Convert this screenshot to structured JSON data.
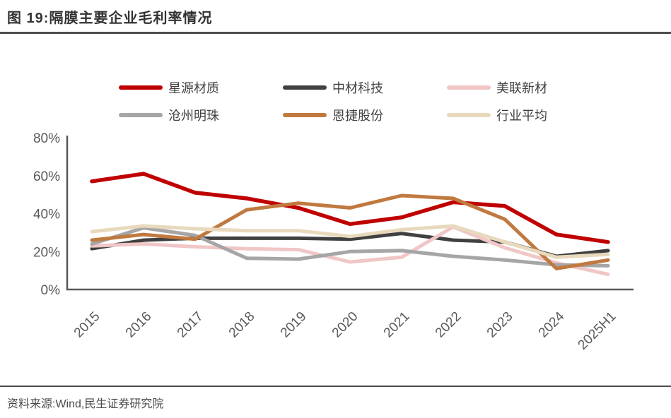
{
  "figure": {
    "title": "图 19:隔膜主要企业毛利率情况",
    "source": "资料来源:Wind,民生证券研究院"
  },
  "chart_data": {
    "type": "line",
    "title": "隔膜主要企业毛利率情况",
    "x": [
      "2015",
      "2016",
      "2017",
      "2018",
      "2019",
      "2020",
      "2021",
      "2022",
      "2023",
      "2024",
      "2025H1"
    ],
    "unit": "%",
    "ylim": [
      0,
      80
    ],
    "yticks": [
      0,
      20,
      40,
      60,
      80
    ],
    "ytick_labels": [
      "0%",
      "20%",
      "40%",
      "60%",
      "80%"
    ],
    "grid": false,
    "legend_position": "top",
    "axis_color": "#595959",
    "tick_label_color": "#595959",
    "series": [
      {
        "name": "星源材质",
        "color": "#C00000",
        "width": 5.5,
        "values": [
          57,
          61,
          51,
          48,
          43,
          34.5,
          38,
          46,
          44,
          29,
          25
        ]
      },
      {
        "name": "中材科技",
        "color": "#404040",
        "width": 5,
        "values": [
          21.5,
          26,
          27,
          27,
          27,
          26.5,
          29.5,
          26,
          25,
          17.5,
          20.5
        ]
      },
      {
        "name": "美联新材",
        "color": "#F0C6C6",
        "width": 5,
        "values": [
          23,
          24,
          22.5,
          21.5,
          21,
          14.5,
          17,
          33,
          22,
          14,
          8
        ]
      },
      {
        "name": "沧州明珠",
        "color": "#A6A6A6",
        "width": 5,
        "values": [
          24,
          32.5,
          28.5,
          16.5,
          16,
          20,
          20.5,
          17.5,
          15.5,
          13,
          12.5
        ]
      },
      {
        "name": "恩捷股份",
        "color": "#C0793F",
        "width": 5,
        "values": [
          26,
          29,
          26.5,
          42,
          45.5,
          43,
          49.5,
          48,
          37,
          11,
          15.5
        ]
      },
      {
        "name": "行业平均",
        "color": "#E8D9BD",
        "width": 5,
        "values": [
          30.5,
          33.5,
          32,
          31,
          31,
          28,
          31.5,
          33.5,
          25,
          17,
          18.5
        ]
      }
    ]
  }
}
